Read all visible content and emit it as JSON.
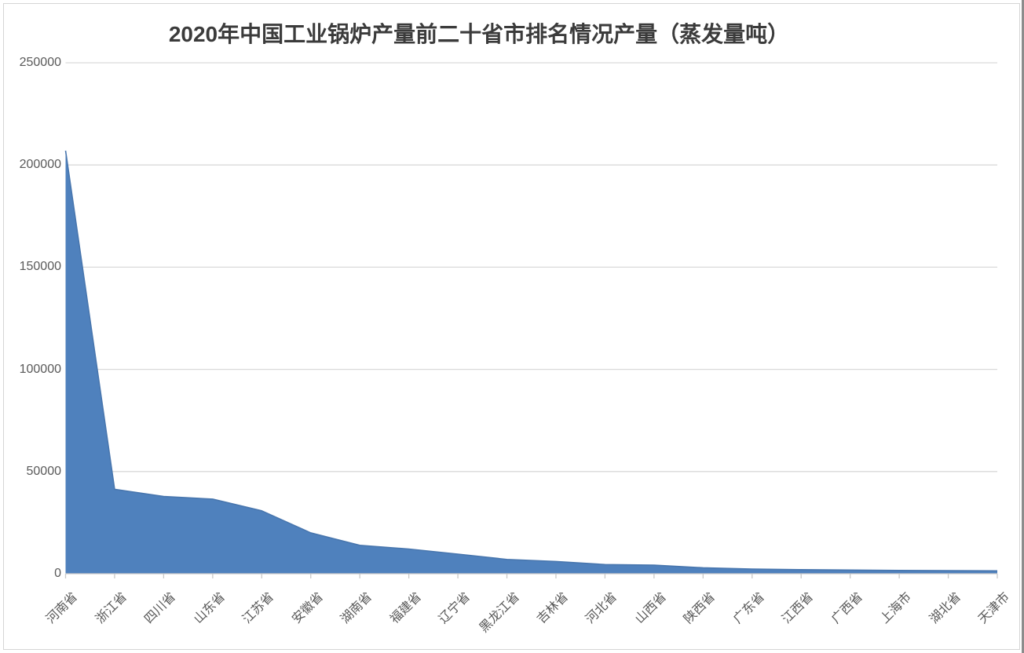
{
  "title": "2020年中国工业锅炉产量前二十省市排名情况产量（蒸发量吨）",
  "chart_data": {
    "type": "area",
    "title": "2020年中国工业锅炉产量前二十省市排名情况产量（蒸发量吨）",
    "categories": [
      "河南省",
      "浙江省",
      "四川省",
      "山东省",
      "江苏省",
      "安徽省",
      "湖南省",
      "福建省",
      "辽宁省",
      "黑龙江省",
      "吉林省",
      "河北省",
      "山西省",
      "陕西省",
      "广东省",
      "江西省",
      "广西省",
      "上海市",
      "湖北省",
      "天津市"
    ],
    "values": [
      207000,
      41300,
      37800,
      36500,
      30800,
      20000,
      13900,
      12100,
      9600,
      7000,
      6000,
      4500,
      4200,
      2900,
      2300,
      2000,
      1800,
      1600,
      1500,
      1400
    ],
    "xlabel": "",
    "ylabel": "",
    "ylim": [
      0,
      250000
    ],
    "ytick_step": 50000,
    "ytick_labels": [
      "250000",
      "200000",
      "150000",
      "100000",
      "50000",
      "0"
    ],
    "grid": true,
    "legend": "none",
    "x_label_rotation_deg": 45
  },
  "colors": {
    "area_fill": "#4F81BD",
    "area_edge": "#4876AE",
    "gridline": "#D9D9D9",
    "axis_line": "#C9C9C9",
    "tick_mark": "#C9C9C9",
    "axis_text": "#595959",
    "title_text": "#3B3B3B",
    "frame_border": "#D5D5D5",
    "window_right_edge": "#8C8C8C",
    "background": "#FFFFFF"
  }
}
